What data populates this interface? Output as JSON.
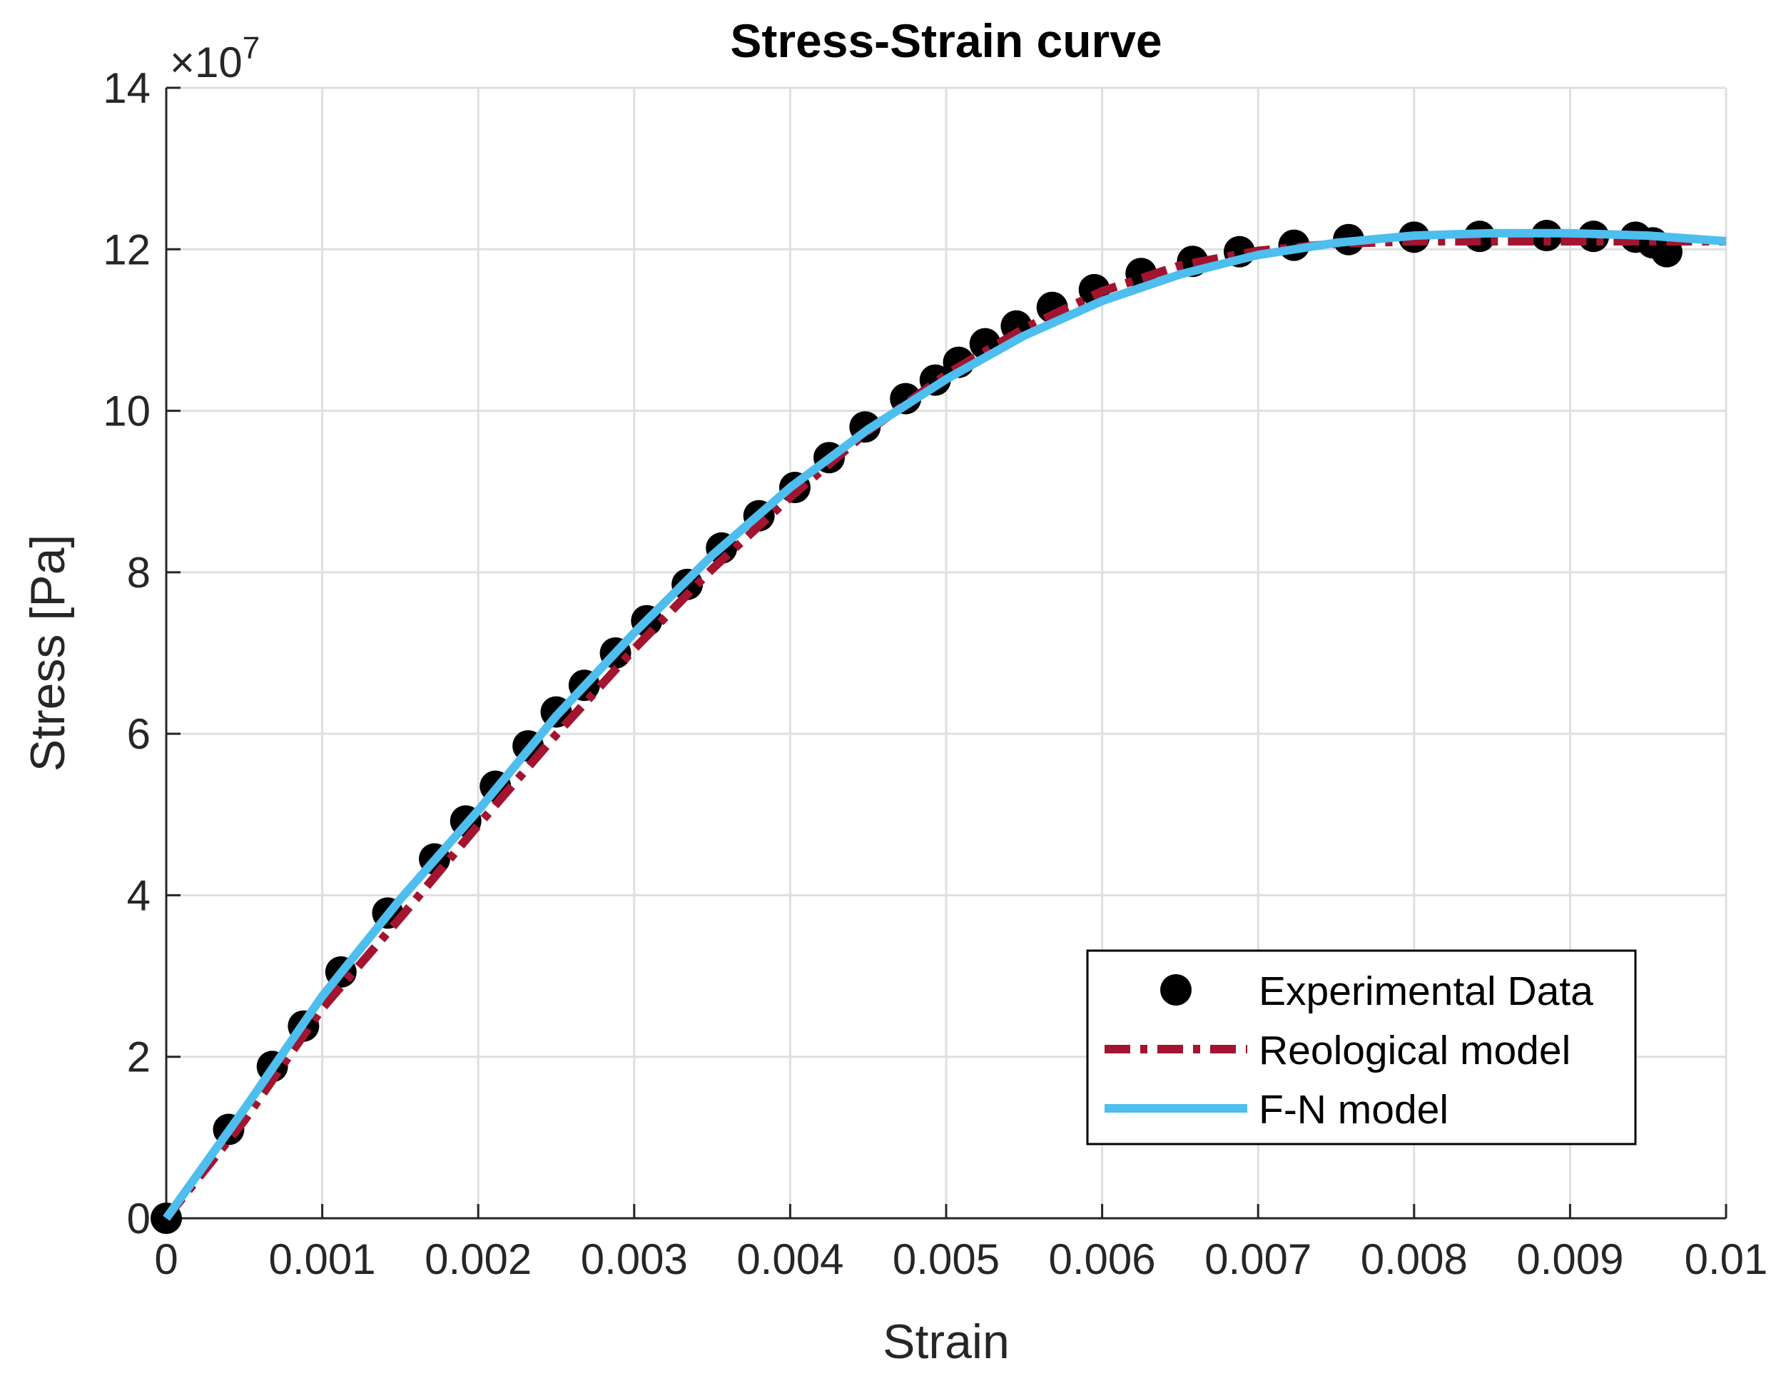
{
  "chart_data": {
    "type": "line",
    "title": "Stress-Strain curve",
    "xlabel": "Strain",
    "ylabel": "Stress [Pa]",
    "y_exponent_label": "×10",
    "y_exponent_power": "7",
    "xlim": [
      0,
      0.01
    ],
    "ylim": [
      0,
      14
    ],
    "x_ticks": [
      0,
      0.001,
      0.002,
      0.003,
      0.004,
      0.005,
      0.006,
      0.007,
      0.008,
      0.009,
      0.01
    ],
    "x_tick_labels": [
      "0",
      "0.001",
      "0.002",
      "0.003",
      "0.004",
      "0.005",
      "0.006",
      "0.007",
      "0.008",
      "0.009",
      "0.01"
    ],
    "y_ticks": [
      0,
      2,
      4,
      6,
      8,
      10,
      12,
      14
    ],
    "y_tick_labels": [
      "0",
      "2",
      "4",
      "6",
      "8",
      "10",
      "12",
      "14"
    ],
    "grid": true,
    "legend_position": "bottom-right",
    "series": [
      {
        "name": "Experimental Data",
        "style": "markers",
        "color": "#000000",
        "x": [
          0,
          0.0004,
          0.00068,
          0.00088,
          0.00112,
          0.00142,
          0.00172,
          0.00192,
          0.00211,
          0.00232,
          0.0025,
          0.00268,
          0.00288,
          0.00308,
          0.00334,
          0.00356,
          0.0038,
          0.00403,
          0.00425,
          0.00448,
          0.00474,
          0.00493,
          0.00508,
          0.00525,
          0.00545,
          0.00568,
          0.00595,
          0.00625,
          0.00658,
          0.00688,
          0.00723,
          0.00758,
          0.008,
          0.00842,
          0.00885,
          0.00915,
          0.00942,
          0.00953,
          0.00962
        ],
        "y": [
          0,
          1.1,
          1.88,
          2.38,
          3.05,
          3.78,
          4.45,
          4.92,
          5.35,
          5.85,
          6.27,
          6.6,
          7.0,
          7.4,
          7.85,
          8.3,
          8.7,
          9.05,
          9.42,
          9.8,
          10.15,
          10.38,
          10.6,
          10.83,
          11.05,
          11.28,
          11.5,
          11.7,
          11.85,
          11.97,
          12.05,
          12.12,
          12.15,
          12.16,
          12.17,
          12.16,
          12.15,
          12.08,
          11.97
        ]
      },
      {
        "name": "Reological model",
        "style": "dash-dot",
        "color": "#a2142f",
        "x": [
          0,
          0.0005,
          0.001,
          0.0015,
          0.002,
          0.0025,
          0.003,
          0.0035,
          0.004,
          0.0045,
          0.005,
          0.0055,
          0.006,
          0.0065,
          0.007,
          0.0075,
          0.008,
          0.0085,
          0.009,
          0.0095,
          0.01
        ],
        "y": [
          0,
          1.21,
          2.6,
          3.72,
          4.87,
          5.99,
          7.05,
          8.04,
          8.93,
          9.75,
          10.45,
          11.02,
          11.48,
          11.8,
          11.98,
          12.07,
          12.1,
          12.1,
          12.1,
          12.1,
          12.1
        ]
      },
      {
        "name": "F-N model",
        "style": "solid",
        "color": "#4dbeee",
        "x": [
          0,
          0.0005,
          0.001,
          0.0015,
          0.002,
          0.0025,
          0.003,
          0.0035,
          0.004,
          0.0045,
          0.005,
          0.0055,
          0.006,
          0.0065,
          0.007,
          0.0075,
          0.008,
          0.0085,
          0.009,
          0.0095,
          0.01
        ],
        "y": [
          0,
          1.35,
          2.75,
          3.95,
          5.05,
          6.22,
          7.25,
          8.21,
          9.05,
          9.77,
          10.39,
          10.93,
          11.36,
          11.69,
          11.93,
          12.08,
          12.17,
          12.2,
          12.2,
          12.17,
          12.1
        ]
      }
    ]
  }
}
